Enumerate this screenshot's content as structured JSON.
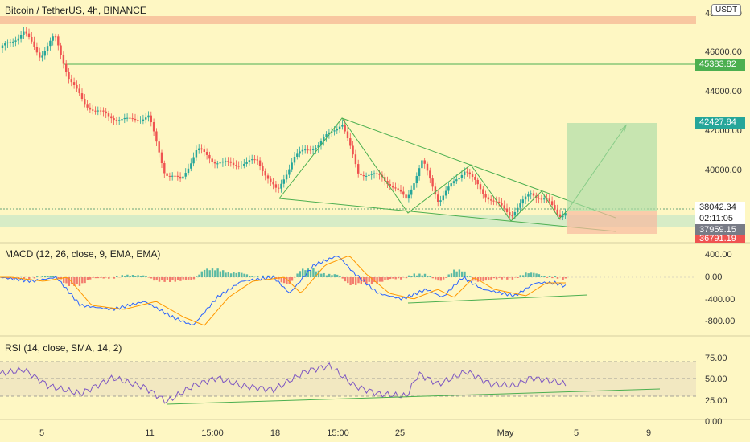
{
  "header": {
    "title": "Bitcoin / TetherUS, 4h, BINANCE",
    "currency": "USDT"
  },
  "price_axis": [
    "48000.00",
    "46000.00",
    "44000.00",
    "42000.00",
    "40000.00"
  ],
  "price_tags": {
    "level_1": "45383.82",
    "target": "42427.84",
    "current": "38042.34",
    "countdown": "02:11:05",
    "level_2": "37959.15",
    "stop": "36791.19"
  },
  "macd": {
    "title": "MACD (12, 26, close, 9, EMA, EMA)",
    "axis": [
      "400.00",
      "0.00",
      "-400.00",
      "-800.00"
    ]
  },
  "rsi": {
    "title": "RSI (14, close, SMA, 14, 2)",
    "axis": [
      "75.00",
      "50.00",
      "25.00",
      "0.00"
    ]
  },
  "time_axis": [
    "5",
    "11",
    "15:00",
    "18",
    "15:00",
    "25",
    "May",
    "5",
    "9"
  ],
  "colors": {
    "background": "#fef7c3",
    "up": "#26a69a",
    "down": "#ef5350",
    "trend": "#4caf50",
    "macd_line": "#2962ff",
    "signal_line": "#ff9800",
    "rsi_line": "#7e57c2"
  }
}
